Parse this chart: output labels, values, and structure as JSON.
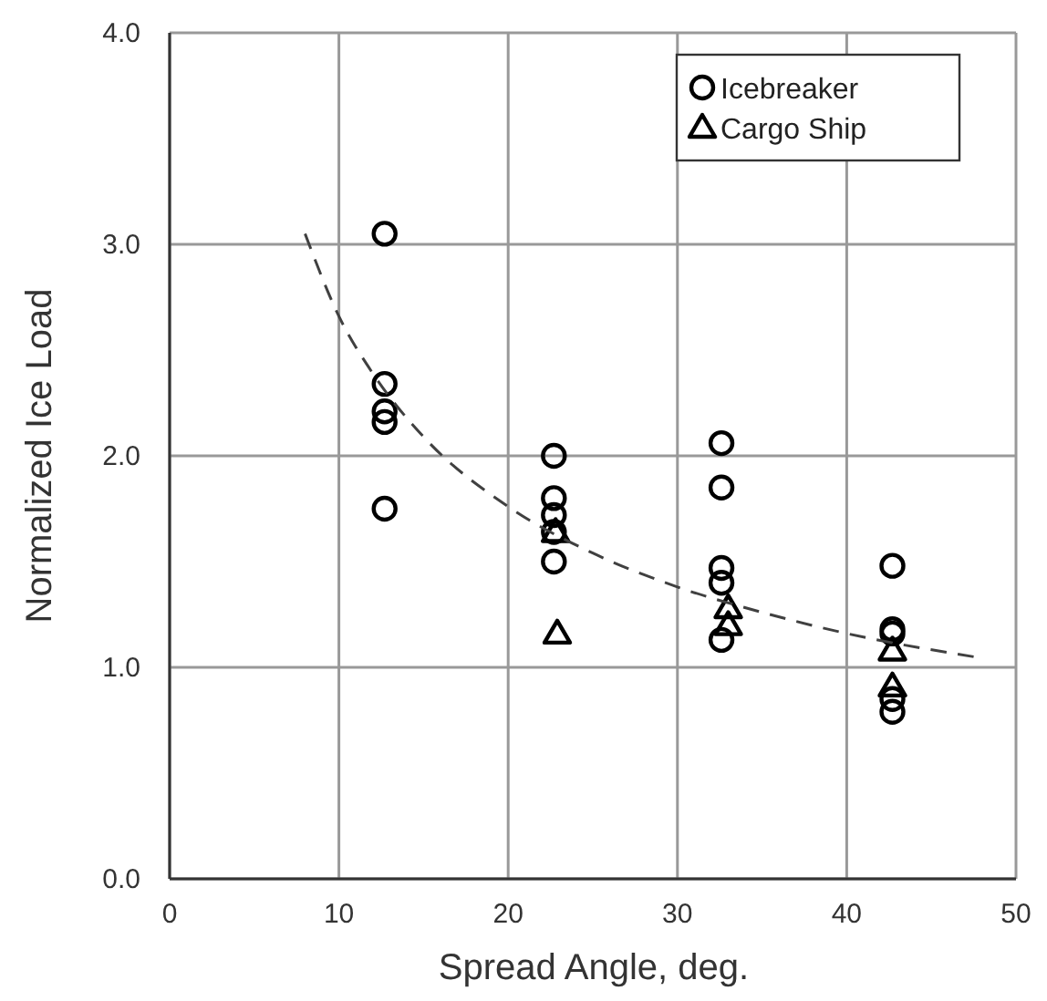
{
  "chart_data": {
    "type": "scatter",
    "xlabel": "Spread Angle, deg.",
    "ylabel": "Normalized Ice Load",
    "xlim": [
      0,
      50
    ],
    "ylim": [
      0,
      4
    ],
    "xticks": [
      0,
      10,
      20,
      30,
      40,
      50
    ],
    "yticks": [
      {
        "value": 0,
        "label": "0.0"
      },
      {
        "value": 1,
        "label": "1.0"
      },
      {
        "value": 2,
        "label": "2.0"
      },
      {
        "value": 3,
        "label": "3.0"
      },
      {
        "value": 4,
        "label": "4.0"
      }
    ],
    "grid": true,
    "legend": "top right",
    "series": [
      {
        "name": "Icebreaker",
        "color": "#000000",
        "marker": "circle",
        "x": [
          12.7,
          12.7,
          12.7,
          12.7,
          12.7,
          22.7,
          22.7,
          22.7,
          22.7,
          22.7,
          32.6,
          32.6,
          32.6,
          32.6,
          32.6,
          42.7,
          42.7,
          42.7,
          42.7,
          42.7
        ],
        "values": [
          3.05,
          2.34,
          2.21,
          2.16,
          1.75,
          2.0,
          1.8,
          1.72,
          1.64,
          1.5,
          2.06,
          1.85,
          1.47,
          1.4,
          1.13,
          1.48,
          1.18,
          1.16,
          0.85,
          0.79
        ]
      },
      {
        "name": "Cargo Ship",
        "color": "#000000",
        "marker": "triangle",
        "x": [
          22.8,
          22.9,
          33.0,
          33.0,
          42.7,
          42.7
        ],
        "values": [
          1.64,
          1.16,
          1.28,
          1.2,
          1.08,
          0.91
        ]
      },
      {
        "type": "line",
        "color": "#404040",
        "line_style": "dashed",
        "marker": "none",
        "x": [
          8,
          10,
          12,
          15,
          20,
          25,
          30,
          35,
          40,
          47.5
        ],
        "values": [
          3.05,
          2.66,
          2.39,
          2.09,
          1.76,
          1.54,
          1.38,
          1.26,
          1.16,
          1.05
        ]
      }
    ]
  }
}
